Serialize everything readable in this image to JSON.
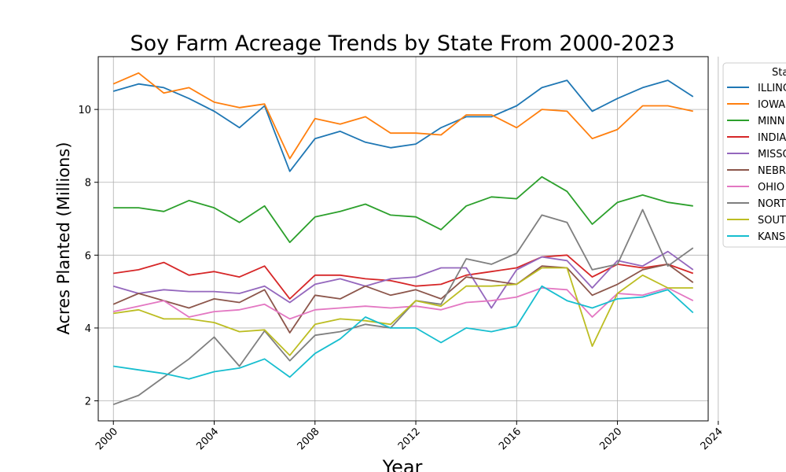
{
  "chart_data": {
    "type": "line",
    "title": "Soy Farm Acreage Trends by State From 2000-2023",
    "xlabel": "Year",
    "ylabel": "Acres Planted (Millions)",
    "xlim": [
      1999.4,
      2023.6
    ],
    "ylim": [
      1.45,
      11.45
    ],
    "xticks": [
      2000,
      2004,
      2008,
      2012,
      2016,
      2020,
      2024
    ],
    "yticks": [
      2,
      4,
      6,
      8,
      10
    ],
    "grid": true,
    "legend": {
      "title": "Sta",
      "placement": "outside-right"
    },
    "x": [
      2000,
      2001,
      2002,
      2003,
      2004,
      2005,
      2006,
      2007,
      2008,
      2009,
      2010,
      2011,
      2012,
      2013,
      2014,
      2015,
      2016,
      2017,
      2018,
      2019,
      2020,
      2021,
      2022,
      2023
    ],
    "series": [
      {
        "name": "ILLINO",
        "color": "#1f77b4",
        "values": [
          10.5,
          10.7,
          10.6,
          10.3,
          9.95,
          9.5,
          10.1,
          8.3,
          9.2,
          9.4,
          9.1,
          8.95,
          9.05,
          9.5,
          9.8,
          9.8,
          10.1,
          10.6,
          10.8,
          9.95,
          10.3,
          10.6,
          10.8,
          10.35
        ]
      },
      {
        "name": "IOWA",
        "color": "#ff7f0e",
        "values": [
          10.7,
          11.0,
          10.45,
          10.6,
          10.2,
          10.05,
          10.15,
          8.65,
          9.75,
          9.6,
          9.8,
          9.35,
          9.35,
          9.3,
          9.85,
          9.85,
          9.5,
          10.0,
          9.95,
          9.2,
          9.45,
          10.1,
          10.1,
          9.95
        ]
      },
      {
        "name": "MINN",
        "color": "#2ca02c",
        "values": [
          7.3,
          7.3,
          7.2,
          7.5,
          7.3,
          6.9,
          7.35,
          6.35,
          7.05,
          7.2,
          7.4,
          7.1,
          7.05,
          6.7,
          7.35,
          7.6,
          7.55,
          8.15,
          7.75,
          6.85,
          7.45,
          7.65,
          7.45,
          7.35
        ]
      },
      {
        "name": "INDIA",
        "color": "#d62728",
        "values": [
          5.5,
          5.6,
          5.8,
          5.45,
          5.55,
          5.4,
          5.7,
          4.8,
          5.45,
          5.45,
          5.35,
          5.3,
          5.15,
          5.2,
          5.45,
          5.55,
          5.65,
          5.95,
          6.0,
          5.4,
          5.75,
          5.65,
          5.75,
          5.5
        ]
      },
      {
        "name": "MISSO",
        "color": "#9467bd",
        "values": [
          5.15,
          4.95,
          5.05,
          5.0,
          5.0,
          4.95,
          5.15,
          4.7,
          5.2,
          5.35,
          5.15,
          5.35,
          5.4,
          5.65,
          5.65,
          4.55,
          5.6,
          5.95,
          5.85,
          5.1,
          5.85,
          5.7,
          6.1,
          5.6
        ]
      },
      {
        "name": "NEBR",
        "color": "#8c564b",
        "values": [
          4.65,
          4.95,
          4.75,
          4.55,
          4.8,
          4.7,
          5.05,
          3.87,
          4.9,
          4.8,
          5.15,
          4.9,
          5.05,
          4.8,
          5.4,
          5.3,
          5.2,
          5.7,
          5.65,
          4.9,
          5.2,
          5.6,
          5.75,
          5.25
        ]
      },
      {
        "name": "OHIO",
        "color": "#e377c2",
        "values": [
          4.45,
          4.6,
          4.75,
          4.3,
          4.45,
          4.5,
          4.65,
          4.25,
          4.5,
          4.55,
          4.6,
          4.55,
          4.6,
          4.5,
          4.7,
          4.75,
          4.85,
          5.1,
          5.05,
          4.3,
          4.95,
          4.9,
          5.1,
          4.75
        ]
      },
      {
        "name": "NORT",
        "color": "#7f7f7f",
        "values": [
          1.9,
          2.15,
          2.65,
          3.15,
          3.75,
          2.95,
          3.92,
          3.1,
          3.8,
          3.9,
          4.1,
          4.0,
          4.75,
          4.65,
          5.9,
          5.75,
          6.05,
          7.1,
          6.9,
          5.6,
          5.75,
          7.25,
          5.7,
          6.2
        ]
      },
      {
        "name": "SOUT",
        "color": "#bcbd22",
        "values": [
          4.4,
          4.5,
          4.25,
          4.25,
          4.15,
          3.9,
          3.95,
          3.25,
          4.1,
          4.25,
          4.2,
          4.1,
          4.75,
          4.6,
          5.15,
          5.15,
          5.2,
          5.65,
          5.65,
          3.5,
          4.95,
          5.45,
          5.1,
          5.1
        ]
      },
      {
        "name": "KANS",
        "color": "#17becf",
        "values": [
          2.95,
          2.85,
          2.75,
          2.6,
          2.8,
          2.9,
          3.15,
          2.65,
          3.3,
          3.7,
          4.3,
          4.0,
          4.0,
          3.6,
          4.0,
          3.9,
          4.05,
          5.15,
          4.75,
          4.55,
          4.8,
          4.85,
          5.05,
          4.42
        ]
      }
    ]
  }
}
